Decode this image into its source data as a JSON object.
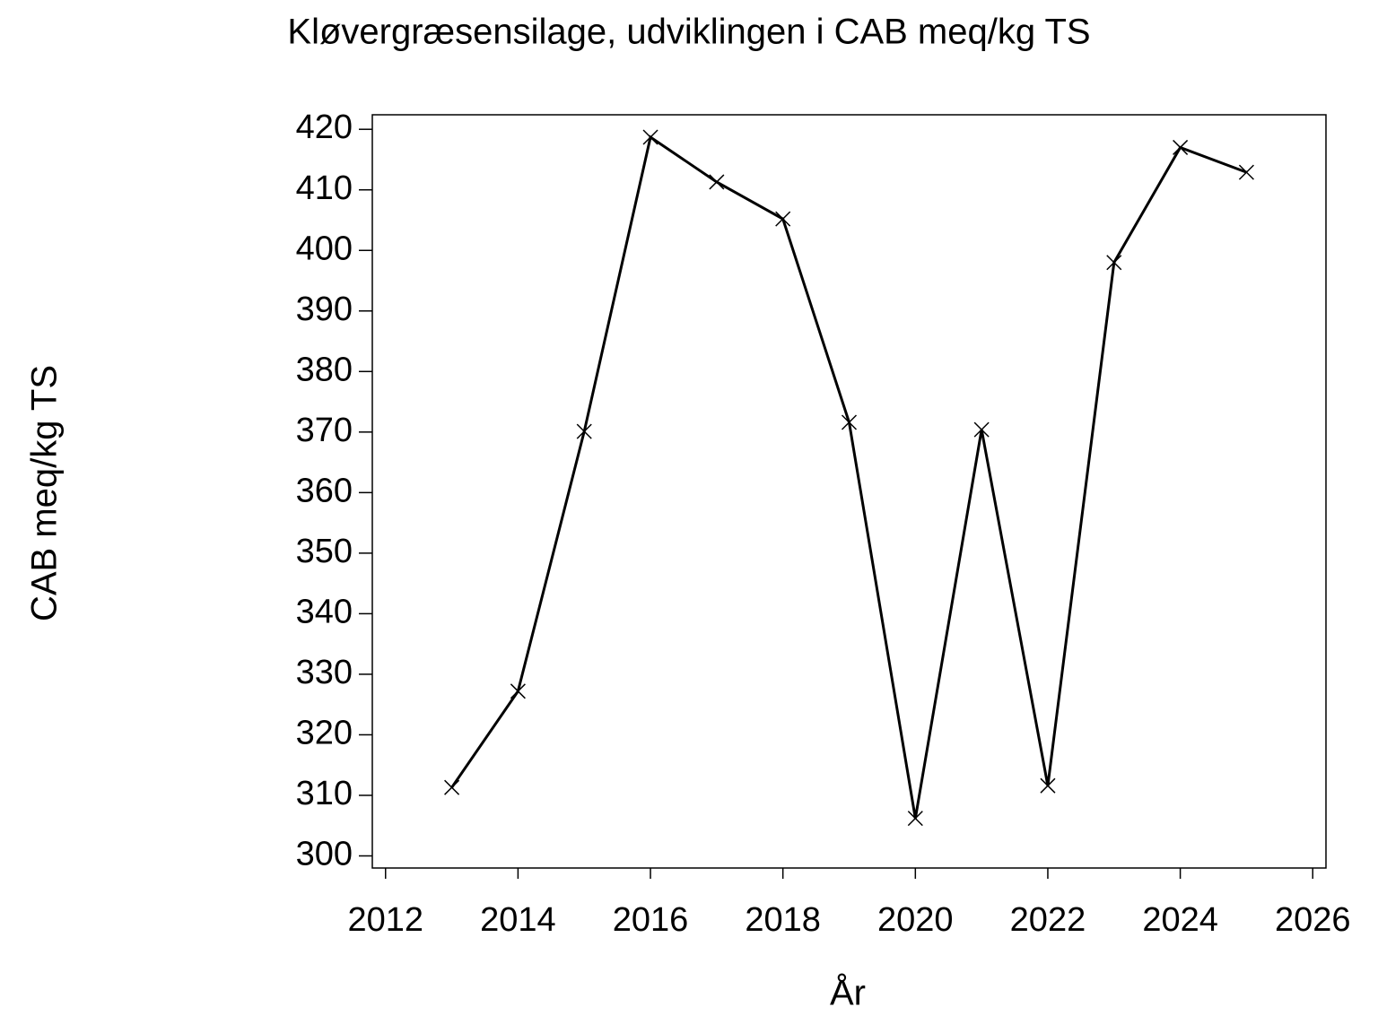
{
  "chart_data": {
    "type": "line",
    "title": "Kløvergræsensilage,  udviklingen  i  CAB  meq/kg  TS",
    "x_label": "År",
    "y_label": "CAB meq/kg TS",
    "x": [
      2013,
      2014,
      2015,
      2016,
      2017,
      2018,
      2019,
      2020,
      2021,
      2022,
      2023,
      2024,
      2025
    ],
    "series": [
      {
        "color": "#000000",
        "values": [
          311.3,
          327.2,
          370.1,
          418.7,
          411.3,
          405.2,
          371.6,
          306.2,
          370.4,
          311.6,
          398.0,
          417.0,
          412.9
        ]
      }
    ],
    "xlim": [
      2011.8,
      2026.2
    ],
    "xticks": [
      2012,
      2014,
      2016,
      2018,
      2020,
      2022,
      2024,
      2026
    ],
    "ylim": [
      298,
      422.4
    ],
    "yticks": [
      300,
      310,
      320,
      330,
      340,
      350,
      360,
      370,
      380,
      390,
      400,
      410,
      420
    ],
    "marker": "x",
    "grid": false
  }
}
